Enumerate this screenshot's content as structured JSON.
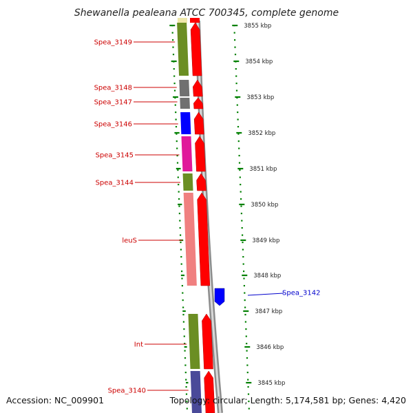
{
  "title": "Shewanella pealeana ATCC 700345, complete genome",
  "accession": "Accession: NC_009901",
  "summary": "Topology: circular; Length: 5,174,581 bp; Genes: 4,420",
  "colors": {
    "plus_arrow": "#ff0000",
    "minus_arrow": "#0000ff",
    "tick": "#008000",
    "backbone": "#8c8c8c",
    "label_plus": "#cc0000",
    "label_minus": "#0000cc",
    "gene_olive": "#6b8e23",
    "gene_gray": "#707070",
    "gene_blue": "#0000ff",
    "gene_magenta": "#e0199a",
    "gene_salmon": "#f08080",
    "gene_slate": "#4a4a99",
    "gene_yellow": "#eee8aa"
  },
  "kbp_ticks": [
    "3855 kbp",
    "3854 kbp",
    "3853 kbp",
    "3852 kbp",
    "3851 kbp",
    "3850 kbp",
    "3849 kbp",
    "3848 kbp",
    "3847 kbp",
    "3846 kbp",
    "3845 kbp"
  ],
  "genes": [
    {
      "label": "Spea_3149",
      "strand": "+",
      "cog_color": "gene_olive"
    },
    {
      "label": "Spea_3148",
      "strand": "+",
      "cog_color": "gene_gray"
    },
    {
      "label": "Spea_3147",
      "strand": "+",
      "cog_color": "gene_gray"
    },
    {
      "label": "Spea_3146",
      "strand": "+",
      "cog_color": "gene_blue"
    },
    {
      "label": "Spea_3145",
      "strand": "+",
      "cog_color": "gene_magenta"
    },
    {
      "label": "Spea_3144",
      "strand": "+",
      "cog_color": "gene_olive"
    },
    {
      "label": "leuS",
      "strand": "+",
      "cog_color": "gene_salmon"
    },
    {
      "label": "Spea_3142",
      "strand": "-",
      "cog_color": ""
    },
    {
      "label": "Int",
      "strand": "+",
      "cog_color": "gene_olive"
    },
    {
      "label": "Spea_3140",
      "strand": "+",
      "cog_color": "gene_slate"
    }
  ]
}
